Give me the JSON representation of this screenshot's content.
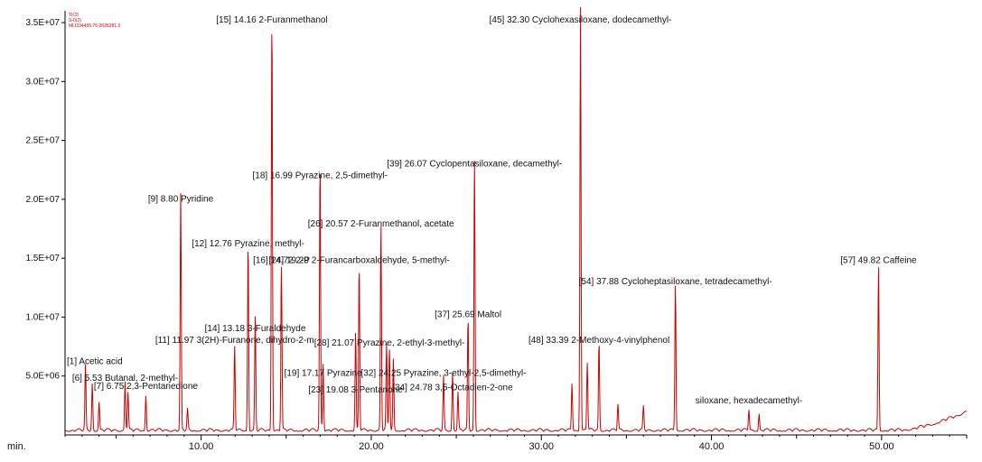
{
  "chart_data": {
    "type": "line",
    "title": "",
    "xlabel": "min.",
    "ylabel": "",
    "xlim": [
      2.0,
      55.0
    ],
    "ylim": [
      0,
      36000000
    ],
    "xticks": [
      10,
      20,
      30,
      40,
      50
    ],
    "xtick_labels": [
      "10.00",
      "20.00",
      "30.00",
      "40.00",
      "50.00"
    ],
    "yticks": [
      5000000,
      10000000,
      15000000,
      20000000,
      25000000,
      30000000,
      35000000
    ],
    "ytick_labels": [
      "5.0E+06",
      "1.0E+07",
      "1.5E+07",
      "2.0E+07",
      "2.5E+07",
      "3.0E+07",
      "3.5E+07"
    ],
    "grid": false,
    "legend_lines": [
      "TIC0",
      "S-0(2)",
      "MLI234455.75-2625281.5"
    ],
    "line_color": "#cc0000",
    "peaks": [
      [
        3.2,
        5500000
      ],
      [
        3.6,
        4000000
      ],
      [
        4.0,
        2400000
      ],
      [
        5.53,
        4200000
      ],
      [
        5.7,
        3200000
      ],
      [
        6.75,
        3000000
      ],
      [
        8.8,
        20000000
      ],
      [
        9.2,
        1800000
      ],
      [
        11.97,
        7200000
      ],
      [
        12.76,
        16000000
      ],
      [
        13.18,
        9700000
      ],
      [
        14.16,
        35400000
      ],
      [
        14.72,
        14000000
      ],
      [
        16.99,
        22800000
      ],
      [
        17.17,
        5800000
      ],
      [
        19.08,
        8300000
      ],
      [
        19.29,
        14000000
      ],
      [
        20.57,
        17500000
      ],
      [
        20.9,
        7200000
      ],
      [
        21.07,
        7000000
      ],
      [
        21.3,
        6000000
      ],
      [
        24.25,
        4600000
      ],
      [
        24.78,
        5000000
      ],
      [
        25.1,
        3200000
      ],
      [
        25.69,
        9500000
      ],
      [
        26.07,
        23200000
      ],
      [
        31.8,
        4000000
      ],
      [
        32.3,
        36000000
      ],
      [
        32.7,
        5800000
      ],
      [
        33.39,
        7500000
      ],
      [
        34.5,
        2200000
      ],
      [
        36.0,
        2000000
      ],
      [
        37.88,
        12500000
      ],
      [
        42.2,
        1800000
      ],
      [
        42.8,
        1400000
      ],
      [
        49.82,
        14000000
      ]
    ],
    "annotations": [
      {
        "x": 14.16,
        "y": 35000000,
        "text": "[15] 14.16 2-Furanmethanol"
      },
      {
        "x": 32.3,
        "y": 35000000,
        "text": "[45] 32.30 Cyclohexasiloxane, dodecamethyl-"
      },
      {
        "x": 26.07,
        "y": 22800000,
        "text": "[39] 26.07 Cyclopentasiloxane, decamethyl-"
      },
      {
        "x": 16.99,
        "y": 21800000,
        "text": "[18] 16.99 Pyrazine, 2,5-dimethyl-"
      },
      {
        "x": 8.8,
        "y": 19800000,
        "text": "[9] 8.80 Pyridine"
      },
      {
        "x": 20.57,
        "y": 17700000,
        "text": "[26] 20.57 2-Furanmethanol, acetate"
      },
      {
        "x": 12.76,
        "y": 16000000,
        "text": "[12] 12.76 Pyrazine, methyl-"
      },
      {
        "x": 14.72,
        "y": 14600000,
        "text": "[16] 14.72 2-P"
      },
      {
        "x": 19.29,
        "y": 14600000,
        "text": "[24] 19.29 2-Furancarboxaldehyde, 5-methyl-"
      },
      {
        "x": 49.82,
        "y": 14600000,
        "text": "[57] 49.82 Caffeine"
      },
      {
        "x": 37.88,
        "y": 12800000,
        "text": "[54] 37.88 Cycloheptasiloxane, tetradecamethyl-"
      },
      {
        "x": 25.69,
        "y": 10000000,
        "text": "[37] 25.69 Maltol"
      },
      {
        "x": 13.18,
        "y": 8800000,
        "text": "[14] 13.18 3-Furaldehyde"
      },
      {
        "x": 11.97,
        "y": 7800000,
        "text": "[11] 11.97 3(2H)-Furanone, dihydro-2-m"
      },
      {
        "x": 21.07,
        "y": 7600000,
        "text": "[28] 21.07 Pyrazine, 2-ethyl-3-methyl-"
      },
      {
        "x": 33.39,
        "y": 7800000,
        "text": "[48] 33.39 2-Methoxy-4-vinylphenol"
      },
      {
        "x": 3.2,
        "y": 6000000,
        "text": "[1] Acetic acid"
      },
      {
        "x": 17.17,
        "y": 5000000,
        "text": "[19] 17.17 Pyrazine"
      },
      {
        "x": 24.25,
        "y": 5000000,
        "text": "[32] 24.25 Pyrazine, 3-ethyl-2,5-dimethyl-"
      },
      {
        "x": 5.53,
        "y": 4600000,
        "text": "[6] 5.53 Butanal, 2-methyl-"
      },
      {
        "x": 24.78,
        "y": 3800000,
        "text": "[34] 24.78 3,5-Octadien-2-one"
      },
      {
        "x": 6.75,
        "y": 3900000,
        "text": "[7] 6.75 2,3-Pentanedione"
      },
      {
        "x": 19.08,
        "y": 3600000,
        "text": "[23] 19.08 3-Pentanone"
      },
      {
        "x": 42.2,
        "y": 2700000,
        "text": "siloxane, hexadecamethyl-"
      }
    ]
  }
}
